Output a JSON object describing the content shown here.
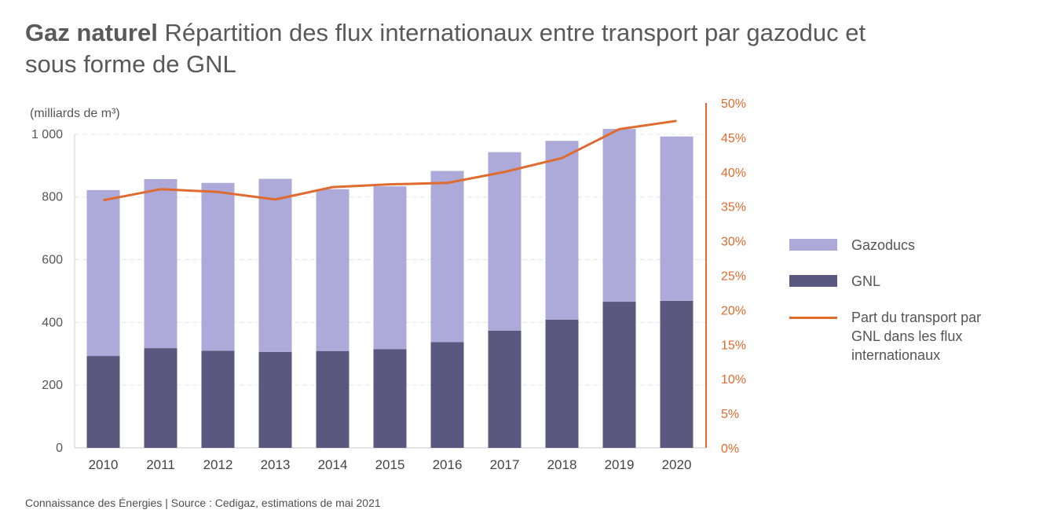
{
  "title": {
    "bold": "Gaz naturel",
    "rest": "Répartition des flux internationaux entre transport par gazoduc et sous forme de GNL"
  },
  "source": "Connaissance des Énergies | Source : Cedigaz, estimations de mai 2021",
  "colors": {
    "gazoducs": "#ada9d9",
    "gnl": "#5b587f",
    "line": "#e06b2e",
    "axis_right": "#e06b2e",
    "grid": "#e6e6e6"
  },
  "chart_data": {
    "type": "bar",
    "stacked": true,
    "ylabel": "(milliards de m³)",
    "ylim": [
      0,
      1100
    ],
    "yticks": [
      0,
      200,
      400,
      600,
      800,
      1000
    ],
    "ytick_labels": [
      "0",
      "200",
      "400",
      "600",
      "800",
      "1 000"
    ],
    "y2lim": [
      0,
      50
    ],
    "y2ticks": [
      0,
      5,
      10,
      15,
      20,
      25,
      30,
      35,
      40,
      45,
      50
    ],
    "y2tick_labels": [
      "0%",
      "5%",
      "10%",
      "15%",
      "20%",
      "25%",
      "30%",
      "35%",
      "40%",
      "45%",
      "50%"
    ],
    "categories": [
      "2010",
      "2011",
      "2012",
      "2013",
      "2014",
      "2015",
      "2016",
      "2017",
      "2018",
      "2019",
      "2020"
    ],
    "series": [
      {
        "name": "GNL",
        "type": "bar",
        "values": [
          293,
          318,
          310,
          306,
          309,
          315,
          337,
          374,
          409,
          466,
          469
        ]
      },
      {
        "name": "Gazoducs",
        "type": "bar",
        "values": [
          529,
          539,
          535,
          552,
          516,
          519,
          546,
          569,
          570,
          551,
          524
        ]
      },
      {
        "name": "Part du transport par GNL dans les flux internationaux",
        "type": "line",
        "axis": "right",
        "values": [
          35.9,
          37.5,
          37.1,
          36.0,
          37.8,
          38.2,
          38.4,
          40.0,
          42.0,
          46.2,
          47.4
        ]
      }
    ],
    "grid": true,
    "legend_position": "right"
  },
  "legend": [
    {
      "label": "Gazoducs",
      "kind": "swatch",
      "color": "#ada9d9"
    },
    {
      "label": "GNL",
      "kind": "swatch",
      "color": "#5b587f"
    },
    {
      "label": "Part du transport par GNL dans les flux internationaux",
      "kind": "line",
      "color": "#e06b2e"
    }
  ]
}
